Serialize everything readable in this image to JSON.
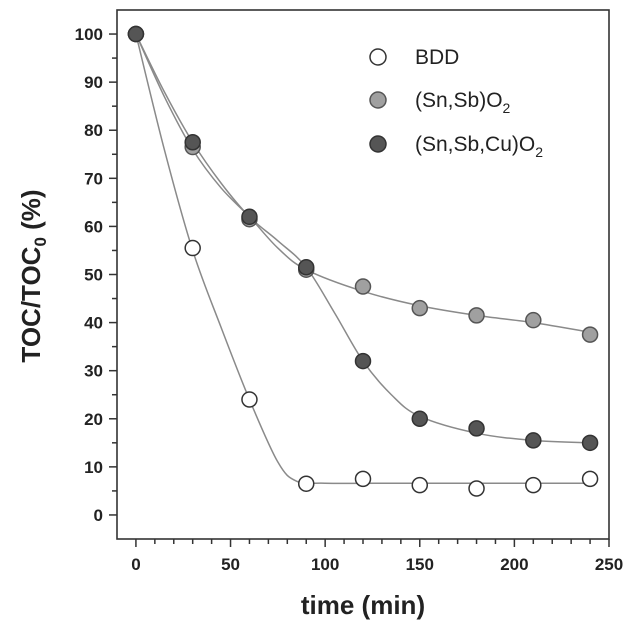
{
  "chart_data": {
    "type": "scatter",
    "xlabel": "time (min)",
    "ylabel": {
      "main": "TOC/TOC",
      "sub": "0",
      "tail": " (%)"
    },
    "xlim": [
      -10,
      250
    ],
    "ylim": [
      -5,
      105
    ],
    "xticks": [
      0,
      50,
      100,
      150,
      200,
      250
    ],
    "yticks": [
      0,
      10,
      20,
      30,
      40,
      50,
      60,
      70,
      80,
      90,
      100
    ],
    "grid": false,
    "legend_position": "top-right",
    "series": [
      {
        "key": "bdd",
        "name": "BDD",
        "name_sub": "",
        "marker": "open-circle",
        "fill": "#ffffff",
        "stroke": "#333333",
        "x": [
          0,
          30,
          60,
          90,
          120,
          150,
          180,
          210,
          240
        ],
        "values": [
          100,
          55.5,
          24,
          6.5,
          7.5,
          6.2,
          5.5,
          6.2,
          7.5
        ],
        "fit": [
          [
            0,
            100
          ],
          [
            15,
            76
          ],
          [
            30,
            55
          ],
          [
            45,
            39
          ],
          [
            60,
            24
          ],
          [
            75,
            11
          ],
          [
            85,
            7
          ],
          [
            100,
            6.6
          ],
          [
            150,
            6.6
          ],
          [
            240,
            6.6
          ]
        ]
      },
      {
        "key": "snsb",
        "name": "(Sn,Sb)O",
        "name_sub": "2",
        "marker": "filled-circle",
        "fill": "#a0a0a0",
        "stroke": "#555555",
        "x": [
          0,
          30,
          60,
          90,
          120,
          150,
          180,
          210,
          240
        ],
        "values": [
          100,
          76.5,
          61.5,
          51,
          47.5,
          43,
          41.5,
          40.5,
          37.5
        ],
        "fit": [
          [
            0,
            100
          ],
          [
            15,
            87
          ],
          [
            30,
            76
          ],
          [
            45,
            68
          ],
          [
            60,
            62
          ],
          [
            75,
            55.5
          ],
          [
            90,
            51
          ],
          [
            120,
            46.5
          ],
          [
            150,
            43.5
          ],
          [
            180,
            41.5
          ],
          [
            210,
            40
          ],
          [
            240,
            38
          ]
        ]
      },
      {
        "key": "snsbcu",
        "name": "(Sn,Sb,Cu)O",
        "name_sub": "2",
        "marker": "filled-circle",
        "fill": "#555555",
        "stroke": "#333333",
        "x": [
          0,
          30,
          60,
          90,
          120,
          150,
          180,
          210,
          240
        ],
        "values": [
          100,
          77.5,
          62,
          51.5,
          32,
          20,
          18,
          15.5,
          15
        ],
        "fit": [
          [
            0,
            100
          ],
          [
            15,
            88
          ],
          [
            30,
            77.5
          ],
          [
            45,
            69
          ],
          [
            60,
            62
          ],
          [
            75,
            57
          ],
          [
            90,
            51.5
          ],
          [
            105,
            42
          ],
          [
            120,
            32
          ],
          [
            135,
            25
          ],
          [
            150,
            20.5
          ],
          [
            180,
            17
          ],
          [
            210,
            15.5
          ],
          [
            240,
            15
          ]
        ]
      }
    ]
  }
}
